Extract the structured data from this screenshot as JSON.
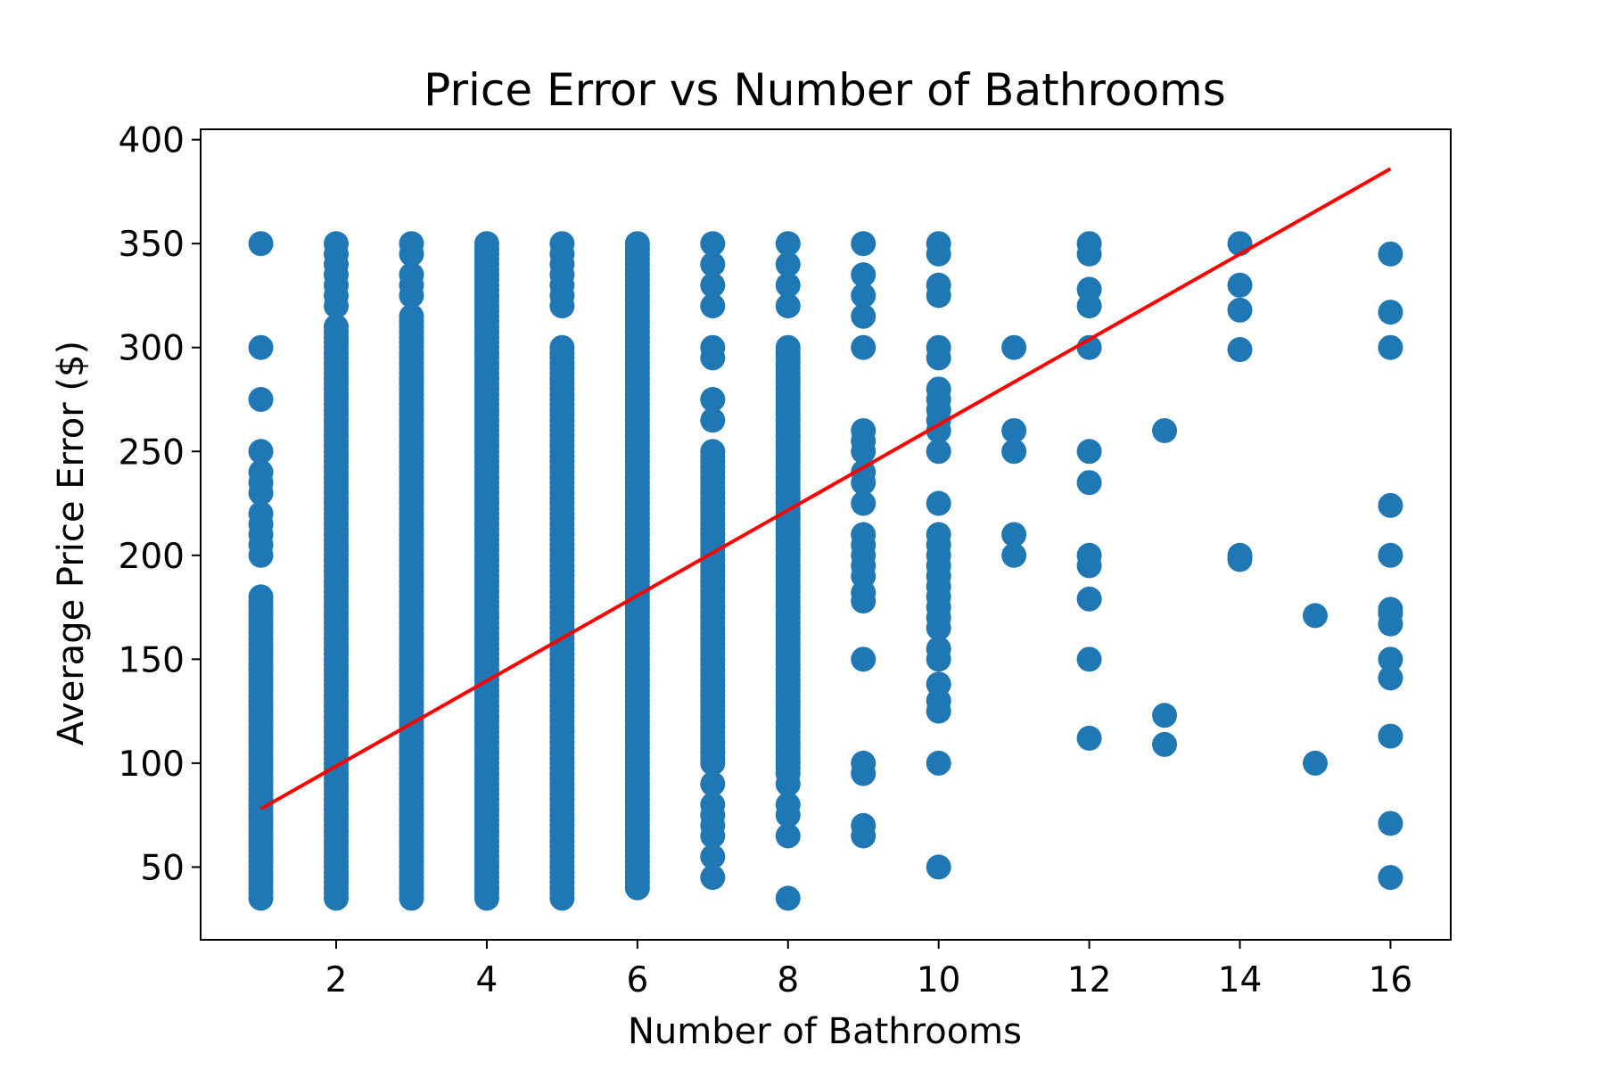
{
  "chart_data": {
    "type": "scatter",
    "title": "Price Error vs Number of Bathrooms",
    "xlabel": "Number of Bathrooms",
    "ylabel": "Average Price Error ($)",
    "xlim": [
      0.2,
      16.8
    ],
    "ylim": [
      15,
      405
    ],
    "xticks": [
      2,
      4,
      6,
      8,
      10,
      12,
      14,
      16
    ],
    "yticks": [
      50,
      100,
      150,
      200,
      250,
      300,
      350,
      400
    ],
    "grid": false,
    "legend": "none",
    "colors": {
      "points": "#1f77b4",
      "trend": "#ff0000",
      "frame": "#000000"
    },
    "series": [
      {
        "type": "scatter",
        "columns": [
          {
            "x": 1,
            "continuous": [
              [
                35,
                180
              ]
            ],
            "points": [
              200,
              205,
              210,
              215,
              220,
              230,
              235,
              240,
              250,
              275,
              300,
              350
            ]
          },
          {
            "x": 2,
            "continuous": [
              [
                35,
                310
              ]
            ],
            "points": [
              320,
              325,
              330,
              335,
              340,
              345,
              350
            ]
          },
          {
            "x": 3,
            "continuous": [
              [
                35,
                315
              ]
            ],
            "points": [
              325,
              330,
              335,
              345,
              350
            ]
          },
          {
            "x": 4,
            "continuous": [
              [
                35,
                350
              ]
            ],
            "points": []
          },
          {
            "x": 5,
            "continuous": [
              [
                35,
                300
              ]
            ],
            "points": [
              320,
              325,
              330,
              335,
              340,
              345,
              350
            ]
          },
          {
            "x": 6,
            "continuous": [
              [
                40,
                350
              ]
            ],
            "points": []
          },
          {
            "x": 7,
            "continuous": [
              [
                100,
                250
              ]
            ],
            "points": [
              45,
              55,
              65,
              70,
              75,
              80,
              90,
              105,
              210,
              225,
              265,
              275,
              295,
              300,
              320,
              330,
              340,
              350
            ]
          },
          {
            "x": 8,
            "continuous": [
              [
                95,
                300
              ]
            ],
            "points": [
              35,
              65,
              75,
              80,
              90,
              320,
              330,
              340,
              350
            ]
          },
          {
            "x": 9,
            "continuous": [],
            "points": [
              65,
              70,
              95,
              100,
              150,
              178,
              182,
              190,
              195,
              200,
              205,
              210,
              225,
              235,
              240,
              250,
              255,
              260,
              300,
              315,
              325,
              335,
              350
            ]
          },
          {
            "x": 10,
            "continuous": [],
            "points": [
              50,
              100,
              125,
              130,
              138,
              150,
              155,
              165,
              170,
              175,
              180,
              185,
              190,
              195,
              200,
              205,
              210,
              225,
              250,
              260,
              265,
              270,
              275,
              280,
              295,
              300,
              325,
              330,
              345,
              350
            ]
          },
          {
            "x": 11,
            "continuous": [],
            "points": [
              200,
              210,
              250,
              260,
              300
            ]
          },
          {
            "x": 12,
            "continuous": [],
            "points": [
              112,
              150,
              179,
              195,
              200,
              235,
              250,
              300,
              320,
              328,
              345,
              350
            ]
          },
          {
            "x": 13,
            "continuous": [],
            "points": [
              109,
              123,
              260
            ]
          },
          {
            "x": 14,
            "continuous": [],
            "points": [
              198,
              200,
              299,
              318,
              330,
              350
            ]
          },
          {
            "x": 15,
            "continuous": [],
            "points": [
              100,
              171
            ]
          },
          {
            "x": 16,
            "continuous": [],
            "points": [
              45,
              71,
              113,
              141,
              150,
              167,
              172,
              174,
              200,
              224,
              300,
              317,
              345
            ]
          }
        ]
      },
      {
        "type": "line",
        "x": [
          1,
          16
        ],
        "y": [
          78,
          386
        ]
      }
    ]
  }
}
